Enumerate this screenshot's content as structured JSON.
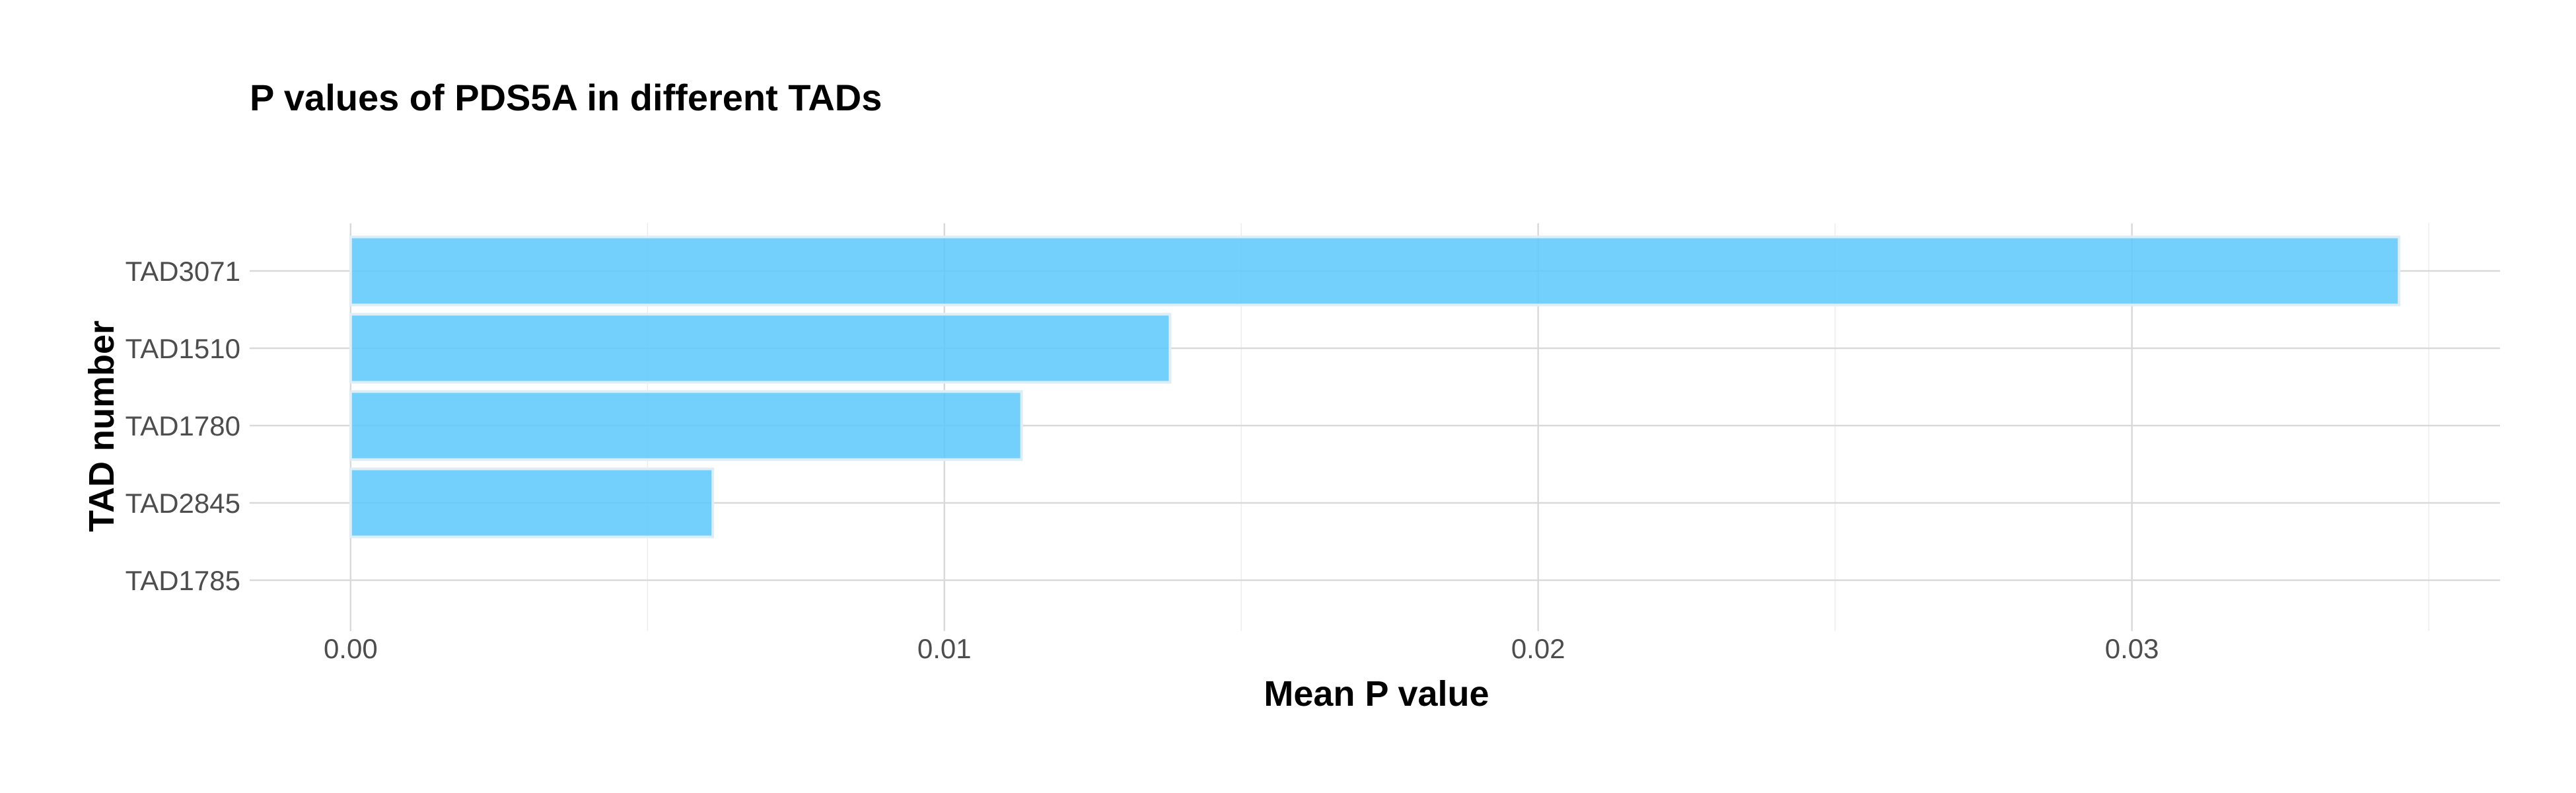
{
  "colors": {
    "bar_fill": "#5bc8fb",
    "bar_stroke": "#ddeef7"
  },
  "chart_data": {
    "type": "bar",
    "orientation": "horizontal",
    "title": "P values of PDS5A in different TADs",
    "xlabel": "Mean P value",
    "ylabel": "TAD number",
    "categories": [
      "TAD3071",
      "TAD1510",
      "TAD1780",
      "TAD2845",
      "TAD1785"
    ],
    "values": [
      0.0345,
      0.0138,
      0.0113,
      0.0061,
      0.0
    ],
    "xlim": [
      -0.0017,
      0.0362
    ],
    "xticks": [
      0.0,
      0.01,
      0.02,
      0.03
    ],
    "xtick_labels": [
      "0.00",
      "0.01",
      "0.02",
      "0.03"
    ],
    "xminor": [
      0.005,
      0.015,
      0.025,
      0.035
    ],
    "grid": true,
    "legend": "none"
  }
}
